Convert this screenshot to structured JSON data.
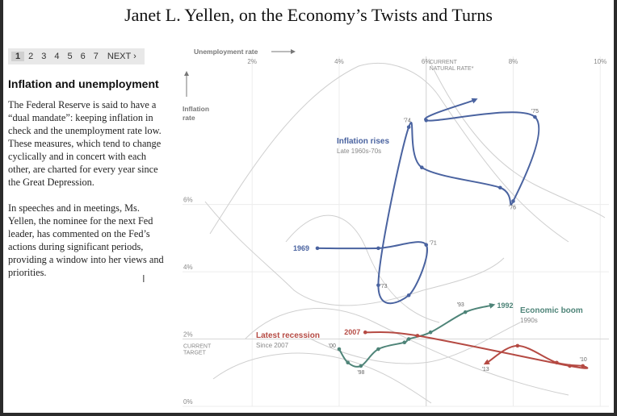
{
  "title": "Janet L. Yellen, on the Economy’s Twists and Turns",
  "pager": {
    "pages": [
      "1",
      "2",
      "3",
      "4",
      "5",
      "6",
      "7"
    ],
    "active_page": "1",
    "next_label": "NEXT ›"
  },
  "sidebar": {
    "heading": "Inflation and unemployment",
    "paragraph1": "The Federal Reserve is said to have a “dual mandate”: keeping inflation in check and the unemployment rate low. These measures, which tend to change cyclically and in concert with each other, are charted for every year since the Great Depression.",
    "paragraph2": "In speeches and in meetings, Ms. Yellen, the nominee for the next Fed leader, has commented on the Fed’s actions during significant periods, providing a window into her views and priorities."
  },
  "chart_data": {
    "type": "line",
    "x_axis": {
      "label": "Unemployment rate",
      "ticks": [
        2,
        4,
        6,
        8,
        10
      ],
      "tick_labels": [
        "2%",
        "4%",
        "6%",
        "8%",
        "10%"
      ],
      "range": [
        0.4,
        10.2
      ],
      "position": "top",
      "reference_label": "CURRENT NATURAL RATE*",
      "reference_value": 6
    },
    "y_axis": {
      "label": "Inflation rate",
      "ticks": [
        0,
        2,
        4,
        6
      ],
      "tick_labels": [
        "0%",
        "2%",
        "4%",
        "6%"
      ],
      "range": [
        0,
        10.4
      ],
      "reference_label": "CURRENT TARGET",
      "reference_value": 2
    },
    "colors": {
      "inflation": "#4a63a0",
      "boom": "#4e8478",
      "recession": "#b54a43",
      "history": "#cfcfcf"
    },
    "series": [
      {
        "name": "Inflation rises",
        "subtitle": "Late 1960s-70s",
        "color": "#4a63a0",
        "start_label": "1969",
        "points": [
          {
            "x": 3.5,
            "y": 4.7,
            "label": "1969"
          },
          {
            "x": 4.9,
            "y": 4.7
          },
          {
            "x": 6.0,
            "y": 4.8,
            "label": "'71"
          },
          {
            "x": 5.6,
            "y": 3.3
          },
          {
            "x": 4.9,
            "y": 3.6,
            "label": "'73"
          },
          {
            "x": 5.6,
            "y": 8.3,
            "label": "'74"
          },
          {
            "x": 5.9,
            "y": 7.1
          },
          {
            "x": 7.7,
            "y": 6.5
          },
          {
            "x": 8.0,
            "y": 6.1,
            "label": "'76"
          },
          {
            "x": 8.5,
            "y": 8.6,
            "label": "'75"
          },
          {
            "x": 6.0,
            "y": 8.5
          },
          {
            "x": 7.1,
            "y": 9.1
          }
        ]
      },
      {
        "name": "Economic boom",
        "subtitle": "1990s",
        "color": "#4e8478",
        "end_label": "1992",
        "points": [
          {
            "x": 4.0,
            "y": 1.7,
            "label": "'00"
          },
          {
            "x": 4.2,
            "y": 1.3
          },
          {
            "x": 4.5,
            "y": 1.2,
            "label": "'98"
          },
          {
            "x": 4.9,
            "y": 1.7
          },
          {
            "x": 5.5,
            "y": 1.9
          },
          {
            "x": 5.6,
            "y": 2.0
          },
          {
            "x": 6.1,
            "y": 2.2
          },
          {
            "x": 6.9,
            "y": 2.8,
            "label": "'93"
          },
          {
            "x": 7.5,
            "y": 3.0,
            "label": "1992"
          }
        ]
      },
      {
        "name": "Latest recession",
        "subtitle": "Since 2007",
        "color": "#b54a43",
        "start_label": "2007",
        "points": [
          {
            "x": 4.6,
            "y": 2.2,
            "label": "2007"
          },
          {
            "x": 5.8,
            "y": 2.1
          },
          {
            "x": 9.3,
            "y": 1.2
          },
          {
            "x": 9.6,
            "y": 1.2,
            "label": "'10"
          },
          {
            "x": 9.0,
            "y": 1.3
          },
          {
            "x": 8.1,
            "y": 1.8
          },
          {
            "x": 7.4,
            "y": 1.3,
            "label": "'13"
          }
        ]
      }
    ]
  }
}
